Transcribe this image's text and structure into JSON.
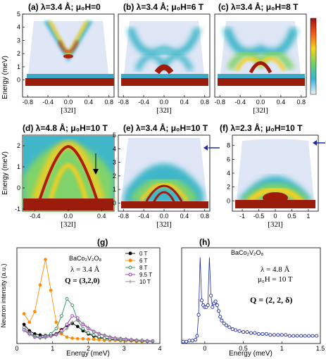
{
  "colors": {
    "ridge": "#8b1e10",
    "mid": "#f2c51a",
    "low": "#3fb7c9",
    "bg_map": "#dfe6f6",
    "series_0T": "#000000",
    "series_6T": "#ff8c00",
    "series_8T": "#2e8b57",
    "series_9_5T": "#9b30c8",
    "series_10T": "#888888",
    "series_h": "#1f2aa8"
  },
  "chart_data": [
    {
      "id": "a",
      "type": "heatmap",
      "title": "(a) λ=3.4 Å; μ₀H=0",
      "ylabel": "Energy (meV)",
      "xlabel": "[32l]",
      "xlim": [
        -0.9,
        0.9
      ],
      "ylim": [
        -1.3,
        5.0
      ],
      "xticks": [
        "-0.8",
        "-0.4",
        "0.0",
        "0.4",
        "0.8"
      ],
      "yticks": [
        "0",
        "1",
        "2",
        "3",
        "4",
        "5"
      ]
    },
    {
      "id": "b",
      "type": "heatmap",
      "title": "(b) λ=3.4 Å; μ₀H=6 T",
      "xlabel": "[32l]",
      "xlim": [
        -0.9,
        0.9
      ],
      "ylim": [
        -1.3,
        5.0
      ],
      "xticks": [
        "-0.8",
        "-0.4",
        "0.0",
        "0.4",
        "0.8"
      ]
    },
    {
      "id": "c",
      "type": "heatmap",
      "title": "(c) λ=3.4 Å; μ₀H=8 T",
      "xlabel": "[32l]",
      "xlim": [
        -0.9,
        0.9
      ],
      "ylim": [
        -1.3,
        5.0
      ],
      "xticks": [
        "-0.8",
        "-0.4",
        "0.0",
        "0.4",
        "0.8"
      ]
    },
    {
      "id": "d",
      "type": "heatmap",
      "title": "(d) λ=4.8 Å; μ₀H=10 T",
      "ylabel": "Energy (meV)",
      "xlabel": "[32l]",
      "xlim": [
        -0.55,
        0.55
      ],
      "ylim": [
        -1.1,
        2.5
      ],
      "xticks": [
        "-0.4",
        "0.0",
        "0.4"
      ],
      "yticks": [
        "-1",
        "0",
        "1",
        "2"
      ]
    },
    {
      "id": "e",
      "type": "heatmap",
      "title": "(e) λ=3.4 Å; μ₀H=10 T",
      "xlabel": "[32l]",
      "xlim": [
        -0.9,
        0.9
      ],
      "ylim": [
        -0.6,
        5.0
      ],
      "xticks": [
        "-0.8",
        "-0.4",
        "0.0",
        "0.4",
        "0.8"
      ],
      "yticks": [
        "0",
        "1",
        "2",
        "3",
        "4",
        "5"
      ]
    },
    {
      "id": "f",
      "type": "heatmap",
      "title": "(f) λ=2.3 Å; μ₀H=10 T",
      "xlabel": "[32l]",
      "xlim": [
        -1.3,
        1.3
      ],
      "ylim": [
        -1.5,
        9.5
      ],
      "xticks": [
        "-1",
        "-0.5",
        "0",
        "0.5",
        "1"
      ],
      "yticks": [
        "0",
        "2",
        "4",
        "6",
        "8"
      ]
    },
    {
      "id": "g",
      "type": "line",
      "title": "(g)",
      "xlabel": "Energy (meV)",
      "ylabel": "Neutron intensity (a.u.)",
      "xlim": [
        0,
        4
      ],
      "ylim": [
        0,
        9
      ],
      "xticks": [
        "0",
        "1",
        "2",
        "3",
        "4"
      ],
      "annotation_compound": "BaCo₂V₂O₈",
      "annotation_lambda": "λ = 3.4 Å",
      "annotation_q": "Q = (3,2,0)",
      "x": [
        0.2,
        0.35,
        0.5,
        0.65,
        0.8,
        0.95,
        1.1,
        1.25,
        1.4,
        1.55,
        1.7,
        1.85,
        2.0,
        2.15,
        2.3,
        2.45,
        2.6,
        2.75,
        2.9,
        3.05,
        3.2,
        3.35,
        3.5,
        3.65,
        3.8
      ],
      "series": [
        {
          "name": "0 T",
          "values": [
            1.8,
            1.2,
            0.9,
            0.8,
            0.75,
            0.8,
            0.9,
            1.3,
            1.7,
            1.9,
            1.6,
            1.2,
            0.9,
            0.7,
            0.55,
            0.45,
            0.4,
            0.35,
            0.3,
            0.3,
            0.25,
            0.25,
            0.2,
            0.2,
            0.2
          ]
        },
        {
          "name": "6 T",
          "values": [
            2.8,
            2.0,
            3.0,
            5.5,
            7.9,
            5.0,
            2.0,
            0.9,
            0.6,
            0.5,
            0.45,
            0.45,
            0.4,
            0.4,
            0.35,
            0.3,
            0.3,
            0.3,
            0.25,
            0.25,
            0.25,
            0.2,
            0.2,
            0.2,
            0.2
          ]
        },
        {
          "name": "8 T",
          "values": [
            1.5,
            1.0,
            0.7,
            0.6,
            0.7,
            0.9,
            1.4,
            2.6,
            4.2,
            3.6,
            2.2,
            1.4,
            1.0,
            0.8,
            0.65,
            0.5,
            0.45,
            0.4,
            0.35,
            0.3,
            0.3,
            0.25,
            0.25,
            0.2,
            0.2
          ]
        },
        {
          "name": "9.5 T",
          "values": [
            1.3,
            0.9,
            0.6,
            0.55,
            0.6,
            0.7,
            0.85,
            1.2,
            1.8,
            2.6,
            2.4,
            1.8,
            1.4,
            1.1,
            0.9,
            0.75,
            0.6,
            0.5,
            0.45,
            0.4,
            0.35,
            0.3,
            0.3,
            0.25,
            0.25
          ]
        },
        {
          "name": "10 T",
          "values": [
            1.2,
            0.85,
            0.6,
            0.5,
            0.55,
            0.65,
            0.8,
            1.0,
            1.4,
            2.0,
            2.2,
            1.9,
            1.5,
            1.2,
            0.95,
            0.8,
            0.65,
            0.55,
            0.5,
            0.45,
            0.4,
            0.35,
            0.3,
            0.3,
            0.25
          ]
        }
      ]
    },
    {
      "id": "h",
      "type": "line",
      "title": "(h)",
      "xlabel": "Energy (meV)",
      "xlim": [
        -0.3,
        1.5
      ],
      "ylim": [
        0,
        1.0
      ],
      "xticks": [
        "0",
        "0.5",
        "1",
        "1.5"
      ],
      "annotation_compound": "BaCo₂V₂O₈",
      "annotation_lambda": "λ = 4.8 Å",
      "annotation_field": "μ₀H = 10 T",
      "annotation_q": "Q = (2, 2, δ)",
      "x": [
        -0.28,
        -0.24,
        -0.2,
        -0.16,
        -0.12,
        -0.1,
        -0.08,
        -0.06,
        -0.04,
        -0.02,
        0.0,
        0.02,
        0.04,
        0.06,
        0.08,
        0.1,
        0.12,
        0.14,
        0.16,
        0.18,
        0.2,
        0.22,
        0.25,
        0.28,
        0.32,
        0.36,
        0.4,
        0.45,
        0.5,
        0.55,
        0.6,
        0.65,
        0.7,
        0.75,
        0.8,
        0.85,
        0.9,
        0.95,
        1.0,
        1.05,
        1.1,
        1.15,
        1.2,
        1.25,
        1.3,
        1.35,
        1.4,
        1.45
      ],
      "series": [
        {
          "name": "",
          "values": [
            0.02,
            0.02,
            0.03,
            0.03,
            0.04,
            0.08,
            0.3,
            0.9,
            0.45,
            0.4,
            0.38,
            0.38,
            0.4,
            0.9,
            0.5,
            0.38,
            0.42,
            0.44,
            0.4,
            0.34,
            0.28,
            0.24,
            0.21,
            0.19,
            0.17,
            0.15,
            0.14,
            0.13,
            0.12,
            0.12,
            0.11,
            0.11,
            0.1,
            0.1,
            0.1,
            0.09,
            0.09,
            0.09,
            0.09,
            0.09,
            0.08,
            0.08,
            0.08,
            0.08,
            0.08,
            0.08,
            0.08,
            0.08
          ]
        }
      ]
    }
  ]
}
